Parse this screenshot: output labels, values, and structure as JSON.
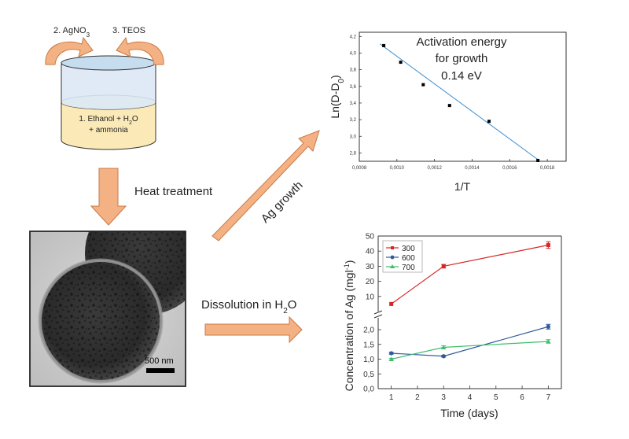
{
  "colors": {
    "arrow_fill": "#f4b183",
    "arrow_stroke": "#c77a45",
    "beaker_top": "#dbe8f5",
    "beaker_liquid": "#fbe9b7",
    "beaker_stroke": "#333333",
    "fit_line": "#3b8ed0",
    "series_300": "#d62728",
    "series_600": "#2f5b9a",
    "series_700": "#3cbf6a"
  },
  "synthesis": {
    "step2": "2. AgNO",
    "step2_sub": "3",
    "step3": "3. TEOS",
    "step1_a": "1. Ethanol + H",
    "step1_sub": "2",
    "step1_b": "O",
    "step1_c": "+ ammonia",
    "heat_treatment": "Heat treatment",
    "ag_growth": "Ag growth",
    "dissolution_prefix": "Dissolution in H",
    "dissolution_sub": "2",
    "dissolution_suffix": "O",
    "scale_bar": "500 nm"
  },
  "chart_data": [
    {
      "type": "scatter",
      "title": "Activation energy for growth 0.14 eV",
      "annotation_lines": [
        "Activation energy",
        "for growth",
        "0.14 eV"
      ],
      "xlabel": "1/T",
      "ylabel_main": "Ln(D-D",
      "ylabel_sub": "0",
      "ylabel_end": ")",
      "xlim": [
        0.0008,
        0.0019
      ],
      "ylim": [
        2.7,
        4.25
      ],
      "x_ticks": [
        "0,0008",
        "0,0010",
        "0,0012",
        "0,0014",
        "0,0016",
        "0,0018"
      ],
      "x_tick_values": [
        0.0008,
        0.001,
        0.0012,
        0.0014,
        0.0016,
        0.0018
      ],
      "y_ticks": [
        "2,8",
        "3,0",
        "3,2",
        "3,4",
        "3,6",
        "3,8",
        "4,0",
        "4,2"
      ],
      "y_tick_values": [
        2.8,
        3.0,
        3.2,
        3.4,
        3.6,
        3.8,
        4.0,
        4.2
      ],
      "points": [
        {
          "x": 0.00093,
          "y": 4.09
        },
        {
          "x": 0.00102,
          "y": 3.89
        },
        {
          "x": 0.00114,
          "y": 3.62
        },
        {
          "x": 0.00128,
          "y": 3.37
        },
        {
          "x": 0.00149,
          "y": 3.18
        },
        {
          "x": 0.00175,
          "y": 2.71
        }
      ],
      "fit": {
        "x0": 0.00091,
        "y0": 4.11,
        "x1": 0.00175,
        "y1": 2.72
      }
    },
    {
      "type": "line",
      "xlabel": "Time (days)",
      "ylabel_main": "Concentration of Ag (mgl",
      "ylabel_sup": "-1",
      "ylabel_end": ")",
      "xlim": [
        0.5,
        7.5
      ],
      "x_ticks": [
        "1",
        "2",
        "3",
        "4",
        "5",
        "6",
        "7"
      ],
      "x_tick_values": [
        1,
        2,
        3,
        4,
        5,
        6,
        7
      ],
      "upper_ylim": [
        0,
        50
      ],
      "upper_y_ticks": [
        "10",
        "20",
        "30",
        "40",
        "50"
      ],
      "upper_y_tick_values": [
        10,
        20,
        30,
        40,
        50
      ],
      "lower_ylim": [
        0,
        2.4
      ],
      "lower_y_ticks": [
        "0,0",
        "0,5",
        "1,0",
        "1,5",
        "2,0"
      ],
      "lower_y_tick_values": [
        0,
        0.5,
        1.0,
        1.5,
        2.0
      ],
      "x": [
        1,
        3,
        7
      ],
      "series": [
        {
          "name": "300",
          "values": [
            5,
            30,
            44
          ],
          "errors": [
            0,
            1.2,
            2.2
          ],
          "panel": "upper",
          "marker": "square"
        },
        {
          "name": "600",
          "values": [
            1.2,
            1.1,
            2.1
          ],
          "errors": [
            0.03,
            0.03,
            0.08
          ],
          "panel": "lower",
          "marker": "circle"
        },
        {
          "name": "700",
          "values": [
            1.0,
            1.4,
            1.6
          ],
          "errors": [
            0.03,
            0.05,
            0.06
          ],
          "panel": "lower",
          "marker": "triangle"
        }
      ]
    }
  ]
}
